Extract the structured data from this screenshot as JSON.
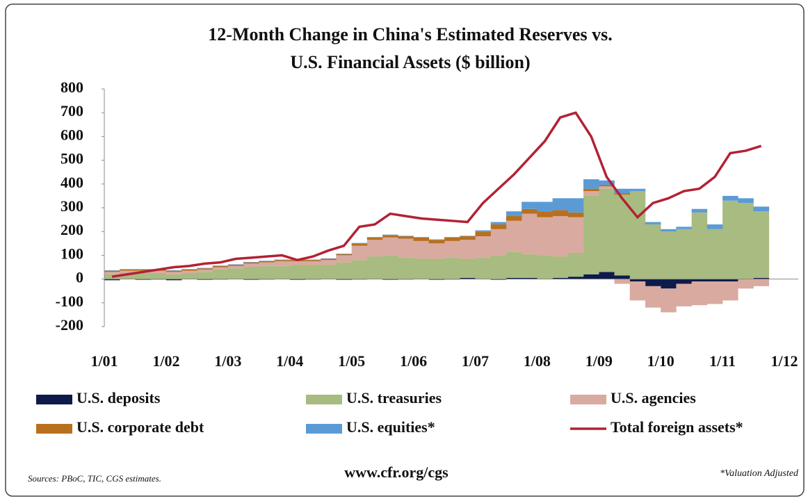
{
  "chart_data": {
    "type": "stacked-bar-line",
    "title": [
      "12-Month Change in China's Estimated Reserves vs.",
      "U.S. Financial Assets ($ billion)"
    ],
    "x": [
      "2001-01",
      "2001-04",
      "2001-07",
      "2001-10",
      "2002-01",
      "2002-04",
      "2002-07",
      "2002-10",
      "2003-01",
      "2003-04",
      "2003-07",
      "2003-10",
      "2004-01",
      "2004-04",
      "2004-07",
      "2004-10",
      "2005-01",
      "2005-04",
      "2005-07",
      "2005-10",
      "2006-01",
      "2006-04",
      "2006-07",
      "2006-10",
      "2007-01",
      "2007-04",
      "2007-07",
      "2007-10",
      "2008-01",
      "2008-04",
      "2008-07",
      "2008-10",
      "2009-01",
      "2009-04",
      "2009-07",
      "2009-10",
      "2010-01",
      "2010-04",
      "2010-07",
      "2010-10",
      "2011-01",
      "2011-04",
      "2011-07"
    ],
    "series": [
      {
        "name": "U.S. deposits",
        "color": "#0d1a4a",
        "kind": "bar",
        "values": [
          -5,
          0,
          -3,
          -2,
          -5,
          0,
          -3,
          -2,
          0,
          -3,
          -2,
          0,
          -3,
          -2,
          0,
          -3,
          -2,
          0,
          -3,
          -2,
          0,
          -3,
          -2,
          5,
          0,
          -3,
          5,
          5,
          0,
          5,
          10,
          20,
          30,
          15,
          -10,
          -30,
          -40,
          -20,
          -10,
          -10,
          -10,
          0,
          5
        ]
      },
      {
        "name": "U.S. treasuries",
        "color": "#a8bb80",
        "kind": "bar",
        "values": [
          20,
          25,
          25,
          25,
          20,
          25,
          30,
          40,
          45,
          50,
          55,
          55,
          60,
          60,
          60,
          70,
          80,
          95,
          100,
          90,
          85,
          85,
          90,
          80,
          90,
          100,
          110,
          100,
          100,
          90,
          100,
          330,
          350,
          340,
          370,
          230,
          200,
          210,
          280,
          210,
          330,
          320,
          280
        ]
      },
      {
        "name": "U.S. agencies",
        "color": "#d9aaa0",
        "kind": "bar",
        "values": [
          10,
          10,
          10,
          10,
          10,
          10,
          10,
          10,
          10,
          15,
          15,
          20,
          15,
          15,
          20,
          30,
          60,
          70,
          75,
          80,
          75,
          65,
          70,
          80,
          90,
          110,
          130,
          170,
          160,
          170,
          150,
          20,
          10,
          -20,
          -80,
          -90,
          -100,
          -95,
          -100,
          -95,
          -80,
          -40,
          -30
        ]
      },
      {
        "name": "U.S. corporate debt",
        "color": "#b8701e",
        "kind": "bar",
        "values": [
          5,
          5,
          5,
          5,
          5,
          5,
          5,
          5,
          5,
          5,
          5,
          5,
          5,
          5,
          5,
          5,
          10,
          10,
          10,
          10,
          15,
          15,
          15,
          15,
          20,
          20,
          20,
          20,
          25,
          25,
          20,
          10,
          5,
          5,
          0,
          0,
          0,
          0,
          0,
          0,
          0,
          0,
          0
        ]
      },
      {
        "name": "U.S. equities*",
        "color": "#5b9bd5",
        "kind": "bar",
        "values": [
          2,
          2,
          2,
          2,
          2,
          2,
          2,
          2,
          2,
          2,
          2,
          2,
          2,
          2,
          2,
          2,
          2,
          2,
          2,
          2,
          2,
          2,
          2,
          2,
          5,
          10,
          20,
          30,
          40,
          50,
          60,
          40,
          20,
          20,
          10,
          10,
          10,
          10,
          15,
          20,
          20,
          20,
          20
        ]
      },
      {
        "name": "Total foreign assets*",
        "color": "#b22234",
        "kind": "line",
        "values": [
          10,
          20,
          30,
          40,
          50,
          55,
          65,
          70,
          85,
          90,
          95,
          100,
          80,
          95,
          120,
          140,
          220,
          230,
          275,
          265,
          255,
          250,
          245,
          240,
          320,
          380,
          440,
          510,
          580,
          680,
          700,
          600,
          430,
          340,
          260,
          320,
          340,
          370,
          380,
          430,
          530,
          540,
          560
        ]
      }
    ],
    "xlim": [
      "2001-01",
      "2012-01"
    ],
    "xticks": [
      {
        "value": "2001-01",
        "label": "1/01"
      },
      {
        "value": "2002-01",
        "label": "1/02"
      },
      {
        "value": "2003-01",
        "label": "1/03"
      },
      {
        "value": "2004-01",
        "label": "1/04"
      },
      {
        "value": "2005-01",
        "label": "1/05"
      },
      {
        "value": "2006-01",
        "label": "1/06"
      },
      {
        "value": "2007-01",
        "label": "1/07"
      },
      {
        "value": "2008-01",
        "label": "1/08"
      },
      {
        "value": "2009-01",
        "label": "1/09"
      },
      {
        "value": "2010-01",
        "label": "1/10"
      },
      {
        "value": "2011-01",
        "label": "1/11"
      },
      {
        "value": "2012-01",
        "label": "1/12"
      }
    ],
    "ylim": [
      -200,
      800
    ],
    "yticks": [
      -200,
      -100,
      0,
      100,
      200,
      300,
      400,
      500,
      600,
      700,
      800
    ],
    "source": "Sources: PBoC, TIC, CGS estimates.",
    "url": "www.cfr.org/cgs",
    "note": "*Valuation Adjusted"
  }
}
